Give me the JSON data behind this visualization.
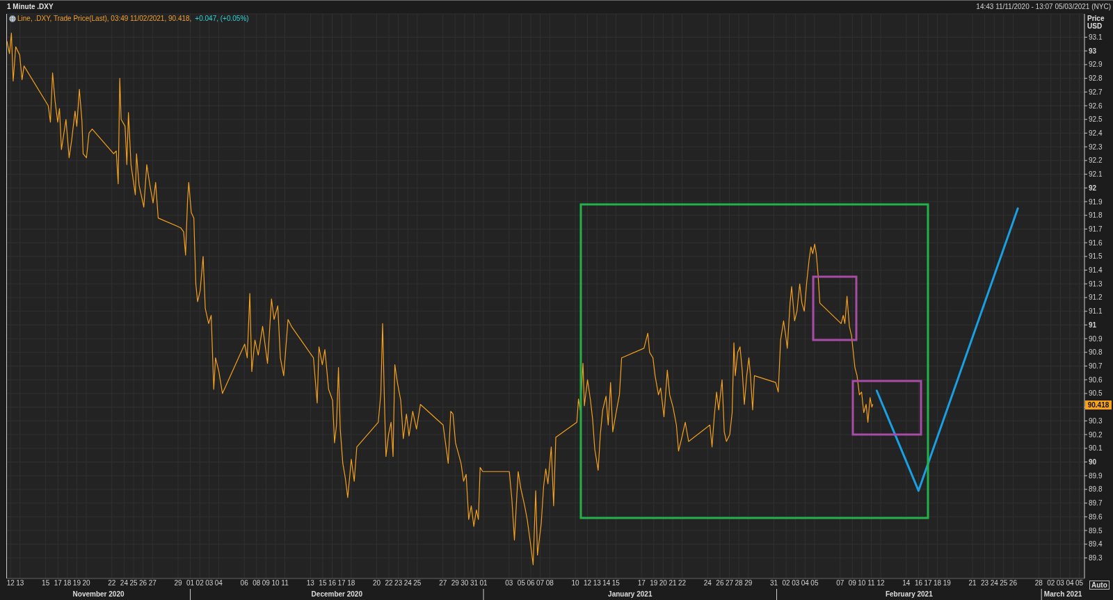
{
  "chart_data": {
    "type": "line",
    "title": "1 Minute .DXY",
    "subtitle": "Line, .DXY, Trade Price(Last), 03:49 11/02/2021, 90.418,",
    "ylabel": "Price USD",
    "annotations": [
      "14:43 11/11/2020 - 13:07 05/03/2021 (NYC)",
      "+0.047, (+0.05%)",
      "Auto",
      {
        "text": "90.418",
        "y": 90.418
      }
    ],
    "xlim": [
      "2020-11-11T14:43",
      "2021-03-05T13:07"
    ],
    "xticks": [
      {
        "value": "2020-11-12",
        "label": "12"
      },
      {
        "value": "2020-11-13",
        "label": "13"
      },
      {
        "value": "2020-11-15T17:00",
        "label": "15"
      },
      {
        "value": "2020-11-17",
        "label": "17"
      },
      {
        "value": "2020-11-18",
        "label": "18"
      },
      {
        "value": "2020-11-19",
        "label": "19"
      },
      {
        "value": "2020-11-20",
        "label": "20"
      },
      {
        "value": "2020-11-22T17:00",
        "label": "22"
      },
      {
        "value": "2020-11-24",
        "label": "24"
      },
      {
        "value": "2020-11-25",
        "label": "25"
      },
      {
        "value": "2020-11-26",
        "label": "26"
      },
      {
        "value": "2020-11-27",
        "label": "27"
      },
      {
        "value": "2020-11-29T17:00",
        "label": "29"
      },
      {
        "value": "2020-12-01",
        "label": "01"
      },
      {
        "value": "2020-12-02",
        "label": "02"
      },
      {
        "value": "2020-12-03",
        "label": "03"
      },
      {
        "value": "2020-12-04",
        "label": "04"
      },
      {
        "value": "2020-12-06T17:00",
        "label": "06"
      },
      {
        "value": "2020-12-08",
        "label": "08"
      },
      {
        "value": "2020-12-09",
        "label": "09"
      },
      {
        "value": "2020-12-10",
        "label": "10"
      },
      {
        "value": "2020-12-11",
        "label": "11"
      },
      {
        "value": "2020-12-13T17:00",
        "label": "13"
      },
      {
        "value": "2020-12-15",
        "label": "15"
      },
      {
        "value": "2020-12-16",
        "label": "16"
      },
      {
        "value": "2020-12-17",
        "label": "17"
      },
      {
        "value": "2020-12-18",
        "label": "18"
      },
      {
        "value": "2020-12-20T17:00",
        "label": "20"
      },
      {
        "value": "2020-12-22",
        "label": "22"
      },
      {
        "value": "2020-12-23",
        "label": "23"
      },
      {
        "value": "2020-12-24",
        "label": "24"
      },
      {
        "value": "2020-12-25",
        "label": "25"
      },
      {
        "value": "2020-12-27T17:00",
        "label": "27"
      },
      {
        "value": "2020-12-29",
        "label": "29"
      },
      {
        "value": "2020-12-30",
        "label": "30"
      },
      {
        "value": "2020-12-31",
        "label": "31"
      },
      {
        "value": "2021-01-01",
        "label": "01"
      },
      {
        "value": "2021-01-03T17:00",
        "label": "03"
      },
      {
        "value": "2021-01-05",
        "label": "05"
      },
      {
        "value": "2021-01-06",
        "label": "06"
      },
      {
        "value": "2021-01-07",
        "label": "07"
      },
      {
        "value": "2021-01-08",
        "label": "08"
      },
      {
        "value": "2021-01-10T17:00",
        "label": "10"
      },
      {
        "value": "2021-01-12",
        "label": "12"
      },
      {
        "value": "2021-01-13",
        "label": "13"
      },
      {
        "value": "2021-01-14",
        "label": "14"
      },
      {
        "value": "2021-01-15",
        "label": "15"
      },
      {
        "value": "2021-01-17T17:00",
        "label": "17"
      },
      {
        "value": "2021-01-19",
        "label": "19"
      },
      {
        "value": "2021-01-20",
        "label": "20"
      },
      {
        "value": "2021-01-21",
        "label": "21"
      },
      {
        "value": "2021-01-22",
        "label": "22"
      },
      {
        "value": "2021-01-24T17:00",
        "label": "24"
      },
      {
        "value": "2021-01-26",
        "label": "26"
      },
      {
        "value": "2021-01-27",
        "label": "27"
      },
      {
        "value": "2021-01-28",
        "label": "28"
      },
      {
        "value": "2021-01-29",
        "label": "29"
      },
      {
        "value": "2021-01-31T17:00",
        "label": "31"
      },
      {
        "value": "2021-02-02",
        "label": "02"
      },
      {
        "value": "2021-02-03",
        "label": "03"
      },
      {
        "value": "2021-02-04",
        "label": "04"
      },
      {
        "value": "2021-02-05",
        "label": "05"
      },
      {
        "value": "2021-02-07T17:00",
        "label": "07"
      },
      {
        "value": "2021-02-09",
        "label": "09"
      },
      {
        "value": "2021-02-10",
        "label": "10"
      },
      {
        "value": "2021-02-11",
        "label": "11"
      },
      {
        "value": "2021-02-12",
        "label": "12"
      },
      {
        "value": "2021-02-14T17:00",
        "label": "14"
      },
      {
        "value": "2021-02-16",
        "label": "16"
      },
      {
        "value": "2021-02-17",
        "label": "17"
      },
      {
        "value": "2021-02-18",
        "label": "18"
      },
      {
        "value": "2021-02-19",
        "label": "19"
      },
      {
        "value": "2021-02-21T17:00",
        "label": "21"
      },
      {
        "value": "2021-02-23",
        "label": "23"
      },
      {
        "value": "2021-02-24",
        "label": "24"
      },
      {
        "value": "2021-02-25",
        "label": "25"
      },
      {
        "value": "2021-02-26",
        "label": "26"
      },
      {
        "value": "2021-02-28T17:00",
        "label": "28"
      },
      {
        "value": "2021-03-02",
        "label": "02"
      },
      {
        "value": "2021-03-03",
        "label": "03"
      },
      {
        "value": "2021-03-04",
        "label": "04"
      },
      {
        "value": "2021-03-05",
        "label": "05"
      }
    ],
    "x2lim": [
      "2020-11-11T14:43",
      "2021-03-05T13:07"
    ],
    "x2ticks": [
      {
        "value": "2020-11-21T07:00",
        "label": "November 2020"
      },
      {
        "value": "2020-12-01",
        "label": null
      },
      {
        "value": "2020-12-16T12:00",
        "label": "December 2020"
      },
      {
        "value": "2021-01-01",
        "label": null
      },
      {
        "value": "2021-01-16T12:00",
        "label": "January 2021"
      },
      {
        "value": "2021-02-01",
        "label": null
      },
      {
        "value": "2021-02-15",
        "label": "February 2021"
      },
      {
        "value": "2021-03-01",
        "label": null
      },
      {
        "value": "2021-03-03T06:30",
        "label": "March 2021"
      }
    ],
    "ylim": [
      89.15,
      93.27
    ],
    "yticks": [
      89.3,
      89.4,
      89.5,
      89.6,
      89.7,
      89.8,
      89.9,
      90,
      90.1,
      90.2,
      90.3,
      {
        "value": 90.4,
        "label": null
      },
      90.5,
      90.6,
      90.7,
      90.8,
      90.9,
      91,
      91.1,
      91.2,
      91.3,
      91.4,
      91.5,
      91.6,
      91.7,
      91.8,
      91.9,
      92,
      92.1,
      92.2,
      92.3,
      92.4,
      92.5,
      92.6,
      92.7,
      92.8,
      92.9,
      93,
      93.1
    ],
    "grid": true,
    "marker": "none",
    "series": [
      {
        "color": "#f5a11c",
        "x": [
          "2020-11-11T14:43",
          "2020-11-11T21:00",
          "2020-11-12T02:00",
          "2020-11-12T06:30",
          "2020-11-12T13:00",
          "2020-11-12T23:00",
          "2020-11-13T05:00",
          "2020-11-13T10:00",
          "2020-11-15T23:30",
          "2020-11-16T05:00",
          "2020-11-16T10:30",
          "2020-11-16T17:00",
          "2020-11-16T23:30",
          "2020-11-17T04:00",
          "2020-11-17T09:00",
          "2020-11-17T20:30",
          "2020-11-18T04:30",
          "2020-11-18T11:00",
          "2020-11-18T19:30",
          "2020-11-19T00:00",
          "2020-11-19T06:30",
          "2020-11-19T13:00",
          "2020-11-19T16:00",
          "2020-11-20T00:30",
          "2020-11-20T07:00",
          "2020-11-20T15:00",
          "2020-11-22T21:30",
          "2020-11-23T04:00",
          "2020-11-23T09:00",
          "2020-11-23T13:00",
          "2020-11-23T16:30",
          "2020-11-24T02:30",
          "2020-11-24T07:00",
          "2020-11-24T11:00",
          "2020-11-24T17:30",
          "2020-11-25T04:30",
          "2020-11-25T07:30",
          "2020-11-25T14:00",
          "2020-11-26T02:00",
          "2020-11-26T09:30",
          "2020-11-26T17:30",
          "2020-11-27T01:30",
          "2020-11-27T08:00",
          "2020-11-27T14:30",
          "2020-11-29T23:15",
          "2020-11-30T07:00",
          "2020-11-30T12:00",
          "2020-11-30T17:00",
          "2020-11-30T20:00",
          "2020-12-01T02:30",
          "2020-12-01T09:00",
          "2020-12-01T10:30",
          "2020-12-01T14:00",
          "2020-12-01T18:30",
          "2020-12-02T01:00",
          "2020-12-02T08:30",
          "2020-12-02T14:00",
          "2020-12-02T22:30",
          "2020-12-03T05:00",
          "2020-12-03T11:30",
          "2020-12-03T16:00",
          "2020-12-04T00:30",
          "2020-12-04T09:30",
          "2020-12-06T18:00",
          "2020-12-07T00:30",
          "2020-12-07T07:00",
          "2020-12-07T12:00",
          "2020-12-07T20:00",
          "2020-12-08T04:30",
          "2020-12-08T15:30",
          "2020-12-09T04:00",
          "2020-12-09T14:00",
          "2020-12-09T20:30",
          "2020-12-10T06:00",
          "2020-12-10T12:30",
          "2020-12-10T21:00",
          "2020-12-11T08:00",
          "2020-12-11T16:30",
          "2020-12-14T00:30",
          "2020-12-14T10:00",
          "2020-12-14T14:30",
          "2020-12-14T23:00",
          "2020-12-15T05:30",
          "2020-12-15T15:00",
          "2020-12-16T01:00",
          "2020-12-16T06:00",
          "2020-12-16T11:00",
          "2020-12-16T16:00",
          "2020-12-16T20:30",
          "2020-12-17T03:00",
          "2020-12-17T09:30",
          "2020-12-17T15:30",
          "2020-12-18T00:30",
          "2020-12-18T08:00",
          "2020-12-18T14:30",
          "2020-12-20T21:00",
          "2020-12-21T03:30",
          "2020-12-21T08:00",
          "2020-12-21T13:00",
          "2020-12-21T16:30",
          "2020-12-21T23:00",
          "2020-12-22T05:30",
          "2020-12-22T10:30",
          "2020-12-22T15:00",
          "2020-12-22T21:30",
          "2020-12-23T06:00",
          "2020-12-23T12:30",
          "2020-12-23T20:30",
          "2020-12-24T03:00",
          "2020-12-24T12:30",
          "2020-12-24T22:00",
          "2020-12-25T08:00",
          "2020-12-27T17:30",
          "2020-12-28T06:30",
          "2020-12-28T13:00",
          "2020-12-28T18:30",
          "2020-12-29T01:00",
          "2020-12-29T08:30",
          "2020-12-29T15:00",
          "2020-12-29T21:30",
          "2020-12-30T04:00",
          "2020-12-30T10:30",
          "2020-12-30T17:00",
          "2020-12-30T23:30",
          "2020-12-31T06:00",
          "2020-12-31T11:00",
          "2020-12-31T15:30",
          "2020-12-31T22:00",
          "2021-01-03T17:30",
          "2021-01-04T00:00",
          "2021-01-04T06:30",
          "2021-01-04T16:00",
          "2021-01-04T22:30",
          "2021-01-05T08:30",
          "2021-01-05T15:00",
          "2021-01-05T23:30",
          "2021-01-06T06:00",
          "2021-01-06T12:30",
          "2021-01-06T17:00",
          "2021-01-07T02:30",
          "2021-01-07T08:30",
          "2021-01-07T14:00",
          "2021-01-07T19:30",
          "2021-01-08T04:00",
          "2021-01-08T10:00",
          "2021-01-08T15:30",
          "2021-01-10T21:00",
          "2021-01-11T01:00",
          "2021-01-11T05:30",
          "2021-01-11T12:30",
          "2021-01-11T16:00",
          "2021-01-12T00:00",
          "2021-01-12T07:30",
          "2021-01-12T13:00",
          "2021-01-12T18:30",
          "2021-01-13T03:00",
          "2021-01-13T08:30",
          "2021-01-13T14:30",
          "2021-01-13T23:00",
          "2021-01-14T04:30",
          "2021-01-14T10:30",
          "2021-01-14T16:00",
          "2021-01-15T00:30",
          "2021-01-15T09:00",
          "2021-01-15T14:30",
          "2021-01-17T23:15",
          "2021-01-18T09:00",
          "2021-01-18T13:30",
          "2021-01-18T22:00",
          "2021-01-19T03:30",
          "2021-01-19T12:00",
          "2021-01-19T17:30",
          "2021-01-20T02:00",
          "2021-01-20T10:30",
          "2021-01-20T16:30",
          "2021-01-21T01:00",
          "2021-01-21T09:30",
          "2021-01-21T15:00",
          "2021-01-21T23:30",
          "2021-01-22T08:00",
          "2021-01-22T16:30",
          "2021-01-24T22:30",
          "2021-01-25T04:00",
          "2021-01-25T09:30",
          "2021-01-25T15:30",
          "2021-01-25T21:00",
          "2021-01-26T05:30",
          "2021-01-26T11:00",
          "2021-01-26T16:30",
          "2021-01-27T01:00",
          "2021-01-27T07:00",
          "2021-01-27T11:30",
          "2021-01-27T15:00",
          "2021-01-27T21:00",
          "2021-01-28T03:00",
          "2021-01-28T08:30",
          "2021-01-28T14:00",
          "2021-01-28T20:00",
          "2021-01-29T01:30",
          "2021-01-29T05:30",
          "2021-01-29T11:00",
          "2021-01-29T15:30",
          "2021-01-31T21:30",
          "2021-02-01T04:00",
          "2021-02-01T10:00",
          "2021-02-01T17:30",
          "2021-02-01T23:00",
          "2021-02-02T03:00",
          "2021-02-02T10:00",
          "2021-02-02T14:00",
          "2021-02-02T21:30",
          "2021-02-03T03:30",
          "2021-02-03T10:30",
          "2021-02-03T16:00",
          "2021-02-03T22:00",
          "2021-02-04T04:30",
          "2021-02-04T10:30",
          "2021-02-04T15:00",
          "2021-02-04T19:30",
          "2021-02-05T00:30",
          "2021-02-05T04:30",
          "2021-02-05T09:00",
          "2021-02-05T13:30",
          "2021-02-07T19:30",
          "2021-02-08T01:00",
          "2021-02-08T05:00",
          "2021-02-08T10:30",
          "2021-02-08T16:30",
          "2021-02-08T22:00",
          "2021-02-09T02:30",
          "2021-02-09T06:30",
          "2021-02-09T12:00",
          "2021-02-09T18:00",
          "2021-02-09T23:30",
          "2021-02-10T05:00",
          "2021-02-10T11:00",
          "2021-02-10T15:30",
          "2021-02-10T21:00",
          "2021-02-11T01:30",
          "2021-02-11T03:49"
        ],
        "values": [
          93.07,
          92.98,
          93.13,
          92.78,
          93.03,
          92.97,
          92.79,
          92.89,
          92.6,
          92.48,
          92.84,
          92.63,
          92.48,
          92.58,
          92.28,
          92.5,
          92.22,
          92.35,
          92.56,
          92.45,
          92.72,
          92.49,
          92.25,
          92.22,
          92.4,
          92.43,
          92.25,
          92.27,
          92.03,
          92.8,
          92.5,
          92.45,
          92.17,
          92.55,
          92.17,
          91.95,
          92.25,
          92.02,
          91.86,
          92.17,
          92.02,
          91.89,
          92.04,
          91.78,
          91.71,
          91.68,
          91.51,
          91.91,
          92.04,
          91.82,
          91.78,
          91.63,
          91.3,
          91.17,
          91.25,
          91.5,
          91.12,
          91.01,
          91.07,
          90.53,
          90.76,
          90.66,
          90.5,
          90.86,
          90.76,
          91.23,
          90.66,
          90.89,
          90.78,
          90.99,
          90.72,
          91.19,
          91.04,
          91.14,
          90.76,
          90.63,
          91.04,
          90.99,
          90.76,
          90.43,
          90.84,
          90.71,
          90.82,
          90.53,
          90.45,
          90.14,
          90.27,
          90.69,
          90.24,
          89.99,
          89.88,
          89.74,
          90.02,
          89.86,
          90.11,
          90.29,
          90.5,
          91.01,
          90.4,
          90.04,
          90.2,
          90.29,
          90.04,
          90.71,
          90.58,
          90.45,
          90.17,
          90.35,
          90.19,
          90.37,
          90.24,
          90.42,
          90.27,
          89.99,
          90.37,
          90.35,
          90.14,
          90.06,
          89.99,
          89.86,
          89.91,
          89.58,
          89.68,
          89.53,
          89.65,
          89.58,
          89.96,
          89.93,
          89.93,
          89.73,
          89.43,
          89.93,
          89.81,
          89.68,
          89.58,
          89.4,
          89.25,
          89.79,
          89.32,
          89.55,
          89.82,
          89.95,
          89.84,
          90.11,
          89.68,
          90.18,
          90.29,
          90.46,
          90.38,
          90.72,
          90.41,
          90.6,
          90.45,
          90.31,
          90.09,
          89.94,
          90.2,
          90.38,
          90.48,
          90.27,
          90.58,
          90.22,
          90.36,
          90.49,
          90.76,
          90.83,
          90.94,
          90.8,
          90.76,
          90.63,
          90.49,
          90.54,
          90.33,
          90.67,
          90.49,
          90.4,
          90.27,
          90.08,
          90.18,
          90.29,
          90.15,
          90.27,
          90.11,
          90.33,
          90.51,
          90.38,
          90.6,
          90.22,
          90.15,
          90.2,
          90.36,
          90.87,
          90.63,
          90.8,
          90.84,
          90.67,
          90.42,
          90.63,
          90.76,
          90.63,
          90.38,
          90.63,
          90.58,
          90.51,
          90.89,
          91.03,
          90.92,
          90.83,
          91.16,
          91.28,
          91.03,
          91.1,
          91.3,
          91.16,
          91.1,
          91.32,
          91.48,
          91.57,
          91.52,
          91.59,
          91.52,
          91.37,
          91.16,
          91.01,
          91.07,
          91.01,
          91.21,
          90.99,
          90.92,
          90.8,
          90.69,
          90.63,
          90.49,
          90.51,
          90.36,
          90.42,
          90.29,
          90.47,
          90.4,
          90.42
        ]
      },
      {
        "color": "#1aa0e2",
        "x": [
          "2021-02-11T14:00",
          "2021-02-16",
          "2021-02-26T12:00"
        ],
        "values": [
          90.52,
          89.79,
          91.85
        ]
      }
    ]
  }
}
